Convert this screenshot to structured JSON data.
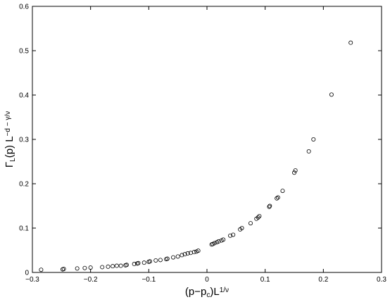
{
  "chart_data": {
    "type": "scatter",
    "title": "",
    "xlabel": {
      "parts": [
        {
          "text": "(p−p",
          "style": "normal"
        },
        {
          "text": "c",
          "style": "sub"
        },
        {
          "text": ")L",
          "style": "normal"
        },
        {
          "text": "1/ν",
          "style": "sup"
        }
      ]
    },
    "ylabel": {
      "parts": [
        {
          "text": "Γ",
          "style": "normal"
        },
        {
          "text": "L",
          "style": "sub"
        },
        {
          "text": "(p) L",
          "style": "normal"
        },
        {
          "text": "−d − γ/ν",
          "style": "sup"
        }
      ]
    },
    "xlim": [
      -0.3,
      0.3
    ],
    "ylim": [
      0,
      0.6
    ],
    "xticks": [
      -0.3,
      -0.2,
      -0.1,
      0,
      0.1,
      0.2,
      0.3
    ],
    "yticks": [
      0,
      0.1,
      0.2,
      0.3,
      0.4,
      0.5,
      0.6
    ],
    "xtick_labels": [
      "−0.3",
      "−0.2",
      "−0.1",
      "0",
      "0.1",
      "0.2",
      "0.3"
    ],
    "ytick_labels": [
      "0",
      "0.1",
      "0.2",
      "0.3",
      "0.4",
      "0.5",
      "0.6"
    ],
    "grid": false,
    "marker": "open-circle",
    "series": [
      {
        "x": [
          -0.285,
          -0.248,
          -0.246,
          -0.223,
          -0.21,
          -0.2,
          -0.18,
          -0.17,
          -0.162,
          -0.155,
          -0.148,
          -0.14,
          -0.138,
          -0.125,
          -0.12,
          -0.118,
          -0.108,
          -0.1,
          -0.098,
          -0.088,
          -0.08,
          -0.07,
          -0.068,
          -0.058,
          -0.05,
          -0.043,
          -0.038,
          -0.033,
          -0.028,
          -0.022,
          -0.018,
          -0.015,
          0.008,
          0.01,
          0.013,
          0.017,
          0.02,
          0.025,
          0.028,
          0.04,
          0.045,
          0.057,
          0.06,
          0.075,
          0.085,
          0.088,
          0.09,
          0.107,
          0.108,
          0.12,
          0.122,
          0.13,
          0.15,
          0.152,
          0.175,
          0.183,
          0.214,
          0.247
        ],
        "y": [
          0.006,
          0.007,
          0.008,
          0.009,
          0.01,
          0.011,
          0.012,
          0.013,
          0.014,
          0.015,
          0.015,
          0.016,
          0.017,
          0.019,
          0.02,
          0.021,
          0.022,
          0.024,
          0.025,
          0.027,
          0.028,
          0.03,
          0.031,
          0.034,
          0.036,
          0.039,
          0.041,
          0.043,
          0.044,
          0.046,
          0.047,
          0.049,
          0.063,
          0.064,
          0.066,
          0.068,
          0.07,
          0.072,
          0.074,
          0.083,
          0.085,
          0.097,
          0.1,
          0.111,
          0.121,
          0.124,
          0.127,
          0.148,
          0.15,
          0.167,
          0.169,
          0.184,
          0.225,
          0.23,
          0.273,
          0.3,
          0.401,
          0.518
        ]
      }
    ]
  }
}
